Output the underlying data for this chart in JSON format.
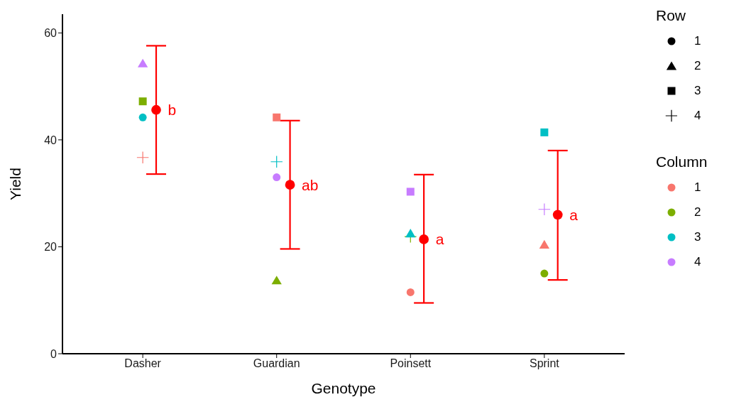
{
  "chart_data": {
    "type": "scatter",
    "xlabel": "Genotype",
    "ylabel": "Yield",
    "categories": [
      "Dasher",
      "Guardian",
      "Poinsett",
      "Sprint"
    ],
    "ylim": [
      0,
      63.5
    ],
    "yticks": [
      0,
      20,
      40,
      60
    ],
    "grid": false,
    "legend": "right",
    "legend_title": "Column",
    "annotations": [
      "Row",
      "1",
      "2",
      "3",
      "4"
    ],
    "series": [
      {
        "name": "1",
        "color": "#f8766d",
        "x": [
          "Dasher",
          "Guardian",
          "Poinsett",
          "Sprint"
        ],
        "values": [
          36.7,
          44.2,
          11.5,
          20.4
        ],
        "marker": [
          "cross",
          "square",
          "circle",
          "triangle"
        ]
      },
      {
        "name": "2",
        "color": "#7cae00",
        "x": [
          "Dasher",
          "Guardian",
          "Poinsett",
          "Sprint"
        ],
        "values": [
          47.2,
          13.7,
          21.9,
          15.0
        ],
        "marker": [
          "square",
          "triangle",
          "cross",
          "circle"
        ]
      },
      {
        "name": "3",
        "color": "#00bfc4",
        "x": [
          "Dasher",
          "Guardian",
          "Poinsett",
          "Sprint"
        ],
        "values": [
          44.2,
          35.9,
          22.5,
          41.4
        ],
        "marker": [
          "circle",
          "cross",
          "triangle",
          "square"
        ]
      },
      {
        "name": "4",
        "color": "#c77cff",
        "x": [
          "Dasher",
          "Guardian",
          "Poinsett",
          "Sprint"
        ],
        "values": [
          54.3,
          33.0,
          30.3,
          27.0
        ],
        "marker": [
          "triangle",
          "circle",
          "square",
          "cross"
        ]
      },
      {
        "marker": "circle",
        "color": "#ff0000",
        "x": [
          "Dasher",
          "Guardian",
          "Poinsett",
          "Sprint"
        ],
        "values": [
          45.6,
          31.6,
          21.4,
          26.0
        ],
        "errors": [
          [
            33.6,
            57.6
          ],
          [
            19.6,
            43.6
          ],
          [
            9.5,
            33.5
          ],
          [
            13.8,
            38.0
          ]
        ],
        "value_labels": [
          "b",
          "ab",
          "a",
          "a"
        ]
      }
    ]
  }
}
